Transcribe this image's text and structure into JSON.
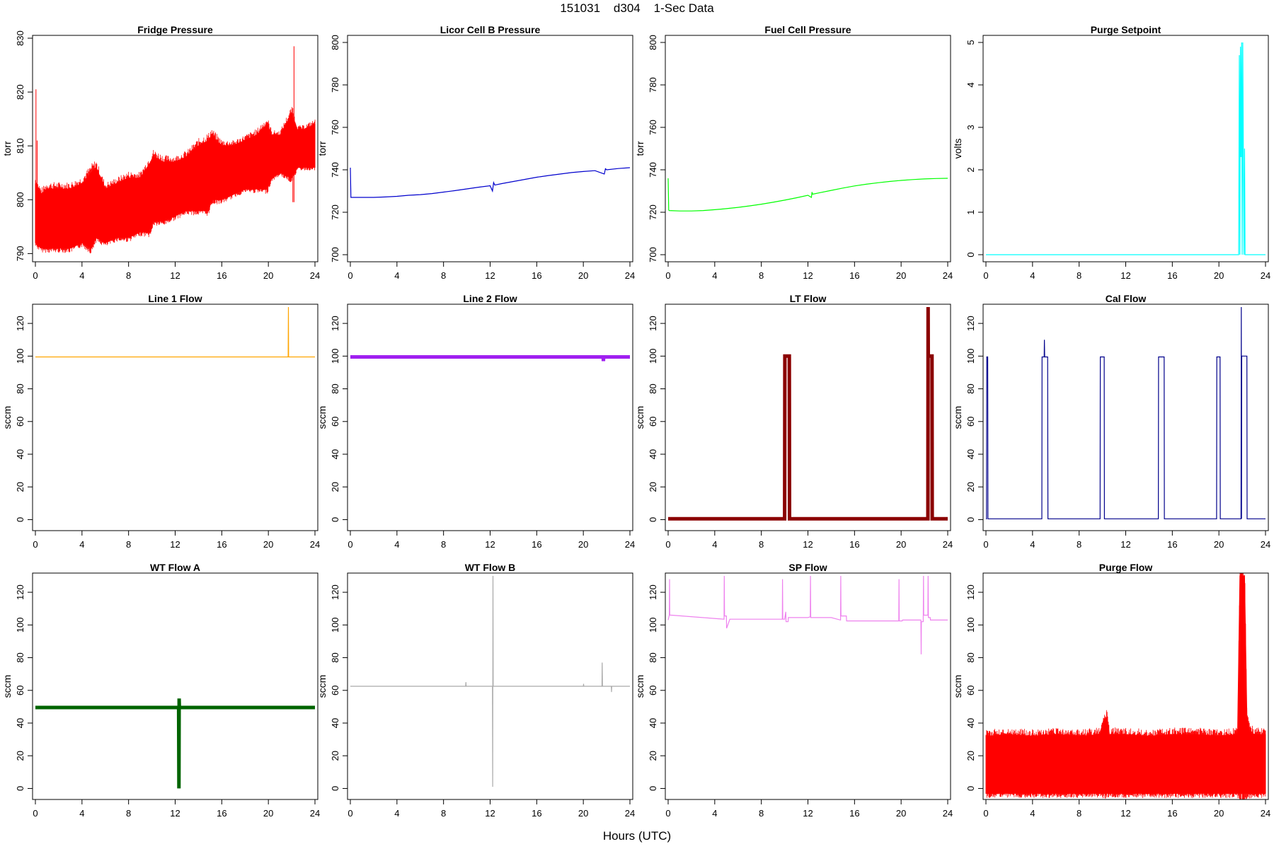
{
  "page_title": "151031    d304    1-Sec Data",
  "x_axis_title": "Hours (UTC)",
  "chart_data": [
    {
      "type": "line",
      "title": "Fridge Pressure",
      "ylabel": "torr",
      "color": "#ff0000",
      "xlim": [
        0,
        24
      ],
      "ylim": [
        789,
        830
      ],
      "xticks": [
        0,
        4,
        8,
        12,
        16,
        20,
        24
      ],
      "yticks": [
        790,
        800,
        810,
        820,
        830
      ],
      "series": [
        {
          "band": true,
          "x": [
            0,
            0.5,
            1,
            2,
            3,
            4,
            4.8,
            5.2,
            6,
            7,
            8,
            9,
            9.9,
            10.1,
            11,
            12,
            13,
            14,
            14.9,
            15.1,
            16,
            17,
            18,
            19,
            19.9,
            20.3,
            21,
            22,
            22.5,
            23,
            24
          ],
          "low": [
            792,
            791,
            791,
            791,
            791,
            792,
            791,
            793,
            792,
            793,
            793,
            794,
            794,
            796,
            796,
            797,
            798,
            798,
            798,
            800,
            800,
            801,
            802,
            802,
            802,
            804,
            805,
            804,
            806,
            806,
            806
          ],
          "high": [
            803,
            801,
            802,
            802,
            802,
            803,
            805,
            806,
            802,
            803,
            804,
            804,
            807,
            808,
            807,
            807,
            808,
            810,
            811,
            812,
            810,
            810,
            811,
            812,
            814,
            812,
            812,
            816,
            813,
            813,
            814
          ],
          "spikes": [
            [
              0.05,
              820.5
            ],
            [
              0.15,
              811
            ],
            [
              22.2,
              828.5
            ],
            [
              22.1,
              817
            ]
          ]
        }
      ]
    },
    {
      "type": "line",
      "title": "Licor Cell B Pressure",
      "ylabel": "torr",
      "color": "#0000cd",
      "xlim": [
        0,
        24
      ],
      "ylim": [
        698,
        802
      ],
      "xticks": [
        0,
        4,
        8,
        12,
        16,
        20,
        24
      ],
      "yticks": [
        700,
        720,
        740,
        760,
        780,
        800
      ],
      "series": [
        {
          "x": [
            0,
            0.05,
            0.1,
            1,
            2,
            3,
            4,
            5,
            6,
            7,
            8,
            9,
            10,
            11,
            12,
            12.2,
            12.3,
            12.4,
            13,
            14,
            15,
            16,
            17,
            18,
            19,
            20,
            21,
            21.8,
            21.9,
            22,
            23,
            24
          ],
          "y": [
            741,
            727,
            727,
            727,
            727,
            727.2,
            727.5,
            728,
            728.3,
            728.8,
            729.5,
            730.2,
            731,
            731.8,
            732.5,
            730,
            734,
            732.8,
            733.5,
            734.5,
            735.5,
            736.5,
            737.3,
            738,
            738.7,
            739.2,
            739.6,
            738,
            740.5,
            740,
            740.6,
            741
          ]
        }
      ]
    },
    {
      "type": "line",
      "title": "Fuel Cell Pressure",
      "ylabel": "torr",
      "color": "#00ff00",
      "xlim": [
        0,
        24
      ],
      "ylim": [
        698,
        802
      ],
      "xticks": [
        0,
        4,
        8,
        12,
        16,
        20,
        24
      ],
      "yticks": [
        700,
        720,
        740,
        760,
        780,
        800
      ],
      "series": [
        {
          "x": [
            0,
            0.05,
            0.1,
            1,
            2,
            3,
            4,
            5,
            6,
            7,
            8,
            9,
            10,
            11,
            12,
            12.3,
            12.35,
            12.4,
            13,
            14,
            15,
            16,
            17,
            18,
            19,
            20,
            21,
            22,
            23,
            24
          ],
          "y": [
            736,
            721,
            720.8,
            720.6,
            720.6,
            720.8,
            721.2,
            721.7,
            722.3,
            723,
            723.8,
            724.7,
            725.7,
            726.8,
            728,
            727,
            729.5,
            728.5,
            729.2,
            730.3,
            731.4,
            732.4,
            733.2,
            733.9,
            734.5,
            735,
            735.4,
            735.7,
            735.9,
            736
          ]
        }
      ]
    },
    {
      "type": "line",
      "title": "Purge Setpoint",
      "ylabel": "volts",
      "color": "#00ffff",
      "xlim": [
        0,
        24
      ],
      "ylim": [
        -0.1,
        5.1
      ],
      "xticks": [
        0,
        4,
        8,
        12,
        16,
        20,
        24
      ],
      "yticks": [
        0,
        1,
        2,
        3,
        4,
        5
      ],
      "series": [
        {
          "x": [
            0,
            21.7,
            21.75,
            21.8,
            21.85,
            21.9,
            21.95,
            22.0,
            22.05,
            22.1,
            22.15,
            22.2,
            22.25,
            22.3,
            22.35,
            22.4,
            24
          ],
          "y": [
            0,
            0,
            4.7,
            0,
            4.9,
            2.3,
            5,
            0,
            5,
            2.4,
            0,
            2.5,
            0,
            0,
            0,
            0,
            0
          ]
        }
      ]
    },
    {
      "type": "line",
      "title": "Line 1 Flow",
      "ylabel": "sccm",
      "color": "#ffa500",
      "xlim": [
        0,
        24
      ],
      "ylim": [
        -5,
        130
      ],
      "xticks": [
        0,
        4,
        8,
        12,
        16,
        20,
        24
      ],
      "yticks": [
        0,
        20,
        40,
        60,
        80,
        100,
        120
      ],
      "series": [
        {
          "x": [
            0,
            21.7,
            21.72,
            21.74,
            24
          ],
          "y": [
            99.5,
            99.5,
            130,
            99.5,
            99.5
          ]
        }
      ]
    },
    {
      "type": "line",
      "title": "Line 2 Flow",
      "ylabel": "sccm",
      "color": "#a020f0",
      "xlim": [
        0,
        24
      ],
      "ylim": [
        -5,
        130
      ],
      "xticks": [
        0,
        4,
        8,
        12,
        16,
        20,
        24
      ],
      "yticks": [
        0,
        20,
        40,
        60,
        80,
        100,
        120
      ],
      "series": [
        {
          "thick": true,
          "x": [
            0,
            21.7,
            21.72,
            21.75,
            24
          ],
          "y": [
            99.5,
            99.5,
            97,
            99.5,
            99.5
          ]
        }
      ]
    },
    {
      "type": "line",
      "title": "LT Flow",
      "ylabel": "sccm",
      "color": "#8b0000",
      "xlim": [
        0,
        24
      ],
      "ylim": [
        -5,
        130
      ],
      "xticks": [
        0,
        4,
        8,
        12,
        16,
        20,
        24
      ],
      "yticks": [
        0,
        20,
        40,
        60,
        80,
        100,
        120
      ],
      "series": [
        {
          "thick": true,
          "x": [
            0,
            10.0,
            10.02,
            10.4,
            10.42,
            22.3,
            22.32,
            22.33,
            22.34,
            22.65,
            22.67,
            24
          ],
          "y": [
            0.5,
            0.5,
            100,
            100,
            0.5,
            0.5,
            130,
            100,
            100,
            100,
            0.5,
            0.5
          ]
        }
      ]
    },
    {
      "type": "line",
      "title": "Cal Flow",
      "ylabel": "sccm",
      "color": "#00008b",
      "xlim": [
        0,
        24
      ],
      "ylim": [
        -5,
        130
      ],
      "xticks": [
        0,
        4,
        8,
        12,
        16,
        20,
        24
      ],
      "yticks": [
        0,
        20,
        40,
        60,
        80,
        100,
        120
      ],
      "series": [
        {
          "x": [
            0,
            0.05,
            0.07,
            0.15,
            0.17,
            4.8,
            4.82,
            5.0,
            5.02,
            5.04,
            5.3,
            5.32,
            9.8,
            9.82,
            10.15,
            10.17,
            14.8,
            14.82,
            15.3,
            15.32,
            19.8,
            19.82,
            20.1,
            20.12,
            21.9,
            21.92,
            21.94,
            21.96,
            22.1,
            22.3,
            22.4,
            22.42,
            24
          ],
          "y": [
            0.5,
            0.5,
            99.5,
            99.5,
            0.5,
            0.5,
            99.5,
            99.5,
            110,
            99.5,
            99.5,
            0.5,
            0.5,
            99.5,
            99.5,
            0.5,
            0.5,
            99.5,
            99.5,
            0.5,
            0.5,
            99.5,
            99.5,
            0.5,
            0.5,
            130,
            0.5,
            100,
            100,
            100,
            100,
            0.5,
            0.5
          ]
        }
      ]
    },
    {
      "type": "line",
      "title": "WT Flow A",
      "ylabel": "sccm",
      "color": "#006400",
      "xlim": [
        0,
        24
      ],
      "ylim": [
        -5,
        130
      ],
      "xticks": [
        0,
        4,
        8,
        12,
        16,
        20,
        24
      ],
      "yticks": [
        0,
        20,
        40,
        60,
        80,
        100,
        120
      ],
      "series": [
        {
          "thick": true,
          "x": [
            0,
            12.3,
            12.32,
            12.34,
            12.36,
            24
          ],
          "y": [
            49.5,
            49.5,
            0,
            55,
            49.5,
            49.5
          ]
        }
      ]
    },
    {
      "type": "line",
      "title": "WT Flow B",
      "ylabel": "sccm",
      "color": "#a9a9a9",
      "xlim": [
        0,
        24
      ],
      "ylim": [
        -5,
        130
      ],
      "xticks": [
        0,
        4,
        8,
        12,
        16,
        20,
        24
      ],
      "yticks": [
        0,
        20,
        40,
        60,
        80,
        100,
        120
      ],
      "series": [
        {
          "x": [
            0,
            9.9,
            9.92,
            9.94,
            12.2,
            12.22,
            12.24,
            12.26,
            20.0,
            20.02,
            20.04,
            21.6,
            21.62,
            21.64,
            22.4,
            22.42,
            22.44,
            24
          ],
          "y": [
            62.5,
            62.5,
            65,
            62.5,
            62.5,
            1,
            130,
            62.5,
            62.5,
            64,
            62.5,
            62.5,
            77,
            62.5,
            62.5,
            59,
            62.5,
            62.5
          ]
        }
      ]
    },
    {
      "type": "line",
      "title": "SP Flow",
      "ylabel": "sccm",
      "color": "#ee82ee",
      "xlim": [
        0,
        24
      ],
      "ylim": [
        -5,
        130
      ],
      "xticks": [
        0,
        4,
        8,
        12,
        16,
        20,
        24
      ],
      "yticks": [
        0,
        20,
        40,
        60,
        80,
        100,
        120
      ],
      "series": [
        {
          "x": [
            0,
            0.1,
            0.12,
            0.14,
            0.3,
            4.8,
            4.82,
            4.84,
            5.0,
            5.02,
            5.3,
            5.32,
            9.8,
            9.82,
            9.84,
            10.0,
            10.1,
            10.12,
            10.3,
            10.32,
            11.0,
            12.0,
            12.2,
            12.22,
            12.24,
            13.0,
            14.0,
            14.8,
            14.82,
            14.84,
            15.3,
            15.32,
            16.0,
            17.0,
            18.0,
            19.0,
            19.8,
            19.82,
            19.84,
            20.1,
            20.12,
            21.0,
            21.7,
            21.72,
            21.74,
            21.9,
            21.92,
            21.94,
            22.0,
            22.2,
            22.3,
            22.32,
            22.34,
            22.5,
            22.52,
            23.0,
            24
          ],
          "y": [
            103,
            106,
            128,
            106,
            106,
            103.5,
            130,
            105.5,
            105.5,
            98,
            103.5,
            103.5,
            103.5,
            128,
            103.5,
            103.5,
            108,
            102,
            102,
            104.5,
            104.5,
            104.5,
            105,
            130,
            104.5,
            104.5,
            104.5,
            103,
            130,
            105.5,
            105.5,
            102.5,
            102.5,
            102.5,
            102.5,
            102.5,
            102.5,
            128,
            102.5,
            102.5,
            103,
            103,
            103,
            82,
            102,
            102,
            130,
            106,
            106,
            106,
            106,
            130,
            104.5,
            104.5,
            103,
            103,
            103
          ]
        }
      ]
    },
    {
      "type": "line",
      "title": "Purge Flow",
      "ylabel": "sccm",
      "color": "#ff0000",
      "xlim": [
        0,
        24
      ],
      "ylim": [
        -5,
        130
      ],
      "xticks": [
        0,
        4,
        8,
        12,
        16,
        20,
        24
      ],
      "yticks": [
        0,
        20,
        40,
        60,
        80,
        100,
        120
      ],
      "series": [
        {
          "band": true,
          "x": [
            0,
            2,
            4,
            6,
            8,
            9.8,
            10.1,
            10.4,
            10.6,
            12,
            14,
            16,
            18,
            20,
            21.6,
            21.8,
            22.0,
            22.2,
            22.4,
            22.6,
            23,
            24
          ],
          "low": [
            -3,
            -3,
            -3,
            -3,
            -3,
            -3,
            -3,
            -3,
            -3,
            -3,
            -3,
            -3,
            -3,
            -3,
            -3,
            -3,
            -3,
            -3,
            -3,
            -3,
            -3,
            -3
          ],
          "high": [
            32,
            33,
            32,
            33,
            32,
            33,
            42,
            43,
            33,
            33,
            32,
            33,
            33,
            32,
            33,
            130,
            130,
            130,
            44,
            36,
            33,
            33
          ],
          "spikes": [
            [
              21.9,
              130
            ],
            [
              22.0,
              130
            ],
            [
              22.1,
              130
            ]
          ]
        }
      ]
    }
  ]
}
